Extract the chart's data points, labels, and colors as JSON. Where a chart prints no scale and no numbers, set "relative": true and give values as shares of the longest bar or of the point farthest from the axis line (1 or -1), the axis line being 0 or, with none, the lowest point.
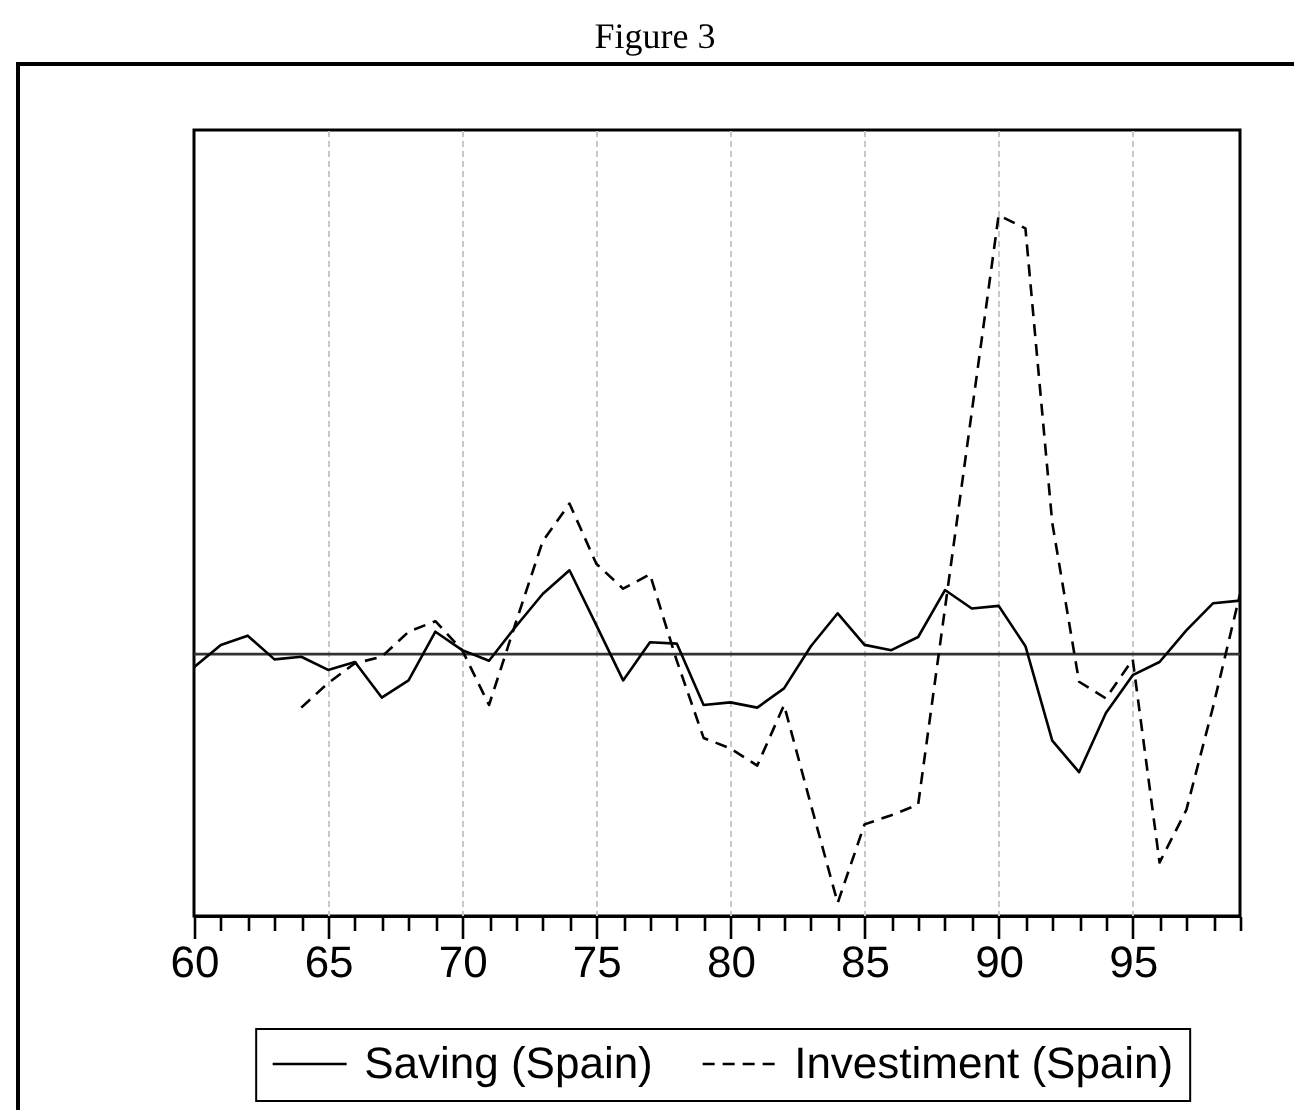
{
  "chart_data": {
    "type": "line",
    "title": "Figure 3",
    "relative": true,
    "x": [
      60,
      61,
      62,
      63,
      64,
      65,
      66,
      67,
      68,
      69,
      70,
      71,
      72,
      73,
      74,
      75,
      76,
      77,
      78,
      79,
      80,
      81,
      82,
      83,
      84,
      85,
      86,
      87,
      88,
      89,
      90,
      91,
      92,
      93,
      94,
      95,
      96,
      97,
      98,
      99
    ],
    "xlim": [
      60,
      99
    ],
    "xticks": [
      60,
      {
        "value": 61,
        "label": null
      },
      {
        "value": 62,
        "label": null
      },
      {
        "value": 63,
        "label": null
      },
      {
        "value": 64,
        "label": null
      },
      65,
      {
        "value": 66,
        "label": null
      },
      {
        "value": 67,
        "label": null
      },
      {
        "value": 68,
        "label": null
      },
      {
        "value": 69,
        "label": null
      },
      70,
      {
        "value": 71,
        "label": null
      },
      {
        "value": 72,
        "label": null
      },
      {
        "value": 73,
        "label": null
      },
      {
        "value": 74,
        "label": null
      },
      75,
      {
        "value": 76,
        "label": null
      },
      {
        "value": 77,
        "label": null
      },
      {
        "value": 78,
        "label": null
      },
      {
        "value": 79,
        "label": null
      },
      80,
      {
        "value": 81,
        "label": null
      },
      {
        "value": 82,
        "label": null
      },
      {
        "value": 83,
        "label": null
      },
      {
        "value": 84,
        "label": null
      },
      85,
      {
        "value": 86,
        "label": null
      },
      {
        "value": 87,
        "label": null
      },
      {
        "value": 88,
        "label": null
      },
      {
        "value": 89,
        "label": null
      },
      90,
      {
        "value": 91,
        "label": null
      },
      {
        "value": 92,
        "label": null
      },
      {
        "value": 93,
        "label": null
      },
      {
        "value": 94,
        "label": null
      },
      95,
      {
        "value": 96,
        "label": null
      },
      {
        "value": 97,
        "label": null
      },
      {
        "value": 98,
        "label": null
      },
      {
        "value": 99,
        "label": null
      }
    ],
    "series": [
      {
        "name": "Saving (Spain)",
        "color": "#000000",
        "line_style": "solid",
        "values": [
          -0.03,
          0.021,
          0.042,
          -0.012,
          -0.006,
          -0.036,
          -0.018,
          -0.099,
          -0.06,
          0.051,
          0.009,
          -0.015,
          0.063,
          0.137,
          0.191,
          0.066,
          -0.06,
          0.027,
          0.024,
          -0.116,
          -0.11,
          -0.122,
          -0.078,
          0.018,
          0.093,
          0.021,
          0.009,
          0.039,
          0.146,
          0.104,
          0.11,
          0.018,
          -0.197,
          -0.269,
          -0.134,
          -0.048,
          -0.018,
          0.054,
          0.116,
          0.122
        ]
      },
      {
        "name": "Investiment (Spain)",
        "color": "#000000",
        "line_style": "dashed",
        "values": [
          null,
          null,
          null,
          null,
          -0.122,
          -0.066,
          -0.021,
          -0.006,
          0.051,
          0.075,
          0.009,
          -0.116,
          0.072,
          0.257,
          0.343,
          0.206,
          0.149,
          0.182,
          -0.015,
          -0.191,
          -0.215,
          -0.254,
          -0.116,
          -0.343,
          -0.567,
          -0.388,
          -0.367,
          -0.343,
          0.104,
          0.552,
          1,
          0.97,
          0.299,
          -0.063,
          -0.101,
          -0.012,
          -0.475,
          -0.355,
          -0.119,
          0.137
        ]
      }
    ],
    "ref_lines": [
      {
        "axis": "y",
        "value": 0,
        "color": "#333333"
      }
    ],
    "grid": "x",
    "legend": "bottom"
  }
}
